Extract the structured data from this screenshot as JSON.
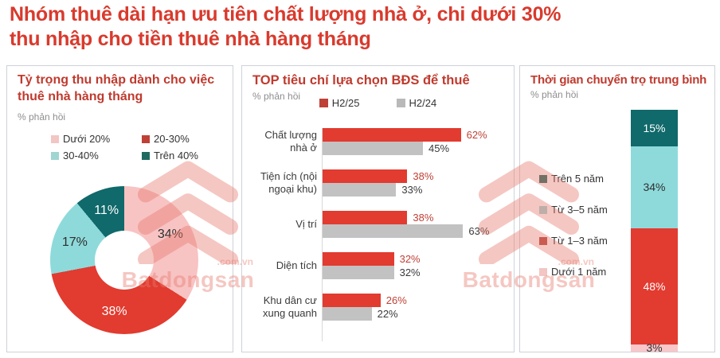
{
  "page": {
    "title": "Nhóm thuê dài hạn ưu tiên chất lượng nhà ở, chi dưới 30% thu nhập cho tiền thuê nhà hàng tháng",
    "title_lines": [
      "Nhóm thuê dài hạn ưu tiên chất lượng nhà ở, chi dưới 30%",
      "thu nhập cho tiền thuê nhà hàng tháng"
    ],
    "title_color": "#d93a2d"
  },
  "watermark": {
    "brand": "Batdongsan",
    "domain": ".com.vn",
    "color": "#f4c3bd"
  },
  "chart_data": [
    {
      "type": "pie",
      "donut": true,
      "title": "Tỷ trọng thu nhập dành cho việc thuê nhà hàng tháng",
      "title_lines": [
        "Tỷ trọng thu nhập dành cho việc",
        "thuê nhà hàng tháng"
      ],
      "subtitle": "% phản hồi",
      "labels": [
        "Dưới 20%",
        "20-30%",
        "30-40%",
        "Trên 40%"
      ],
      "values": [
        34,
        38,
        17,
        11
      ],
      "colors": [
        "#f8c3c3",
        "#e23b30",
        "#8edadb",
        "#10696a"
      ],
      "legend_colors": [
        "#f2c6c3",
        "#bf4136",
        "#9fd6d2",
        "#1f6a60"
      ],
      "label_text_colors": [
        "#2f2f2f",
        "#ffffff",
        "#2f2f2f",
        "#ffffff"
      ],
      "value_suffix": "%",
      "start_angle_deg": 0,
      "direction": "clockwise",
      "legend_position": "top"
    },
    {
      "type": "bar",
      "orientation": "horizontal",
      "grouped": true,
      "title": "TOP tiêu chí lựa chọn BĐS để thuê",
      "subtitle": "% phản hồi",
      "categories": [
        "Chất lượng nhà ở",
        "Tiện ích (nội ngoại khu)",
        "Vị trí",
        "Diện tích",
        "Khu dân cư xung quanh"
      ],
      "series": [
        {
          "name": "H2/25",
          "color": "#e23b30",
          "legend_color": "#bf4136",
          "value_text_color": "#bf4136",
          "values": [
            62,
            38,
            38,
            32,
            26
          ]
        },
        {
          "name": "H2/24",
          "color": "#c2c2c2",
          "legend_color": "#b9b9b9",
          "value_text_color": "#3a3a3a",
          "values": [
            45,
            33,
            63,
            32,
            22
          ]
        }
      ],
      "value_suffix": "%",
      "xlim": [
        0,
        70
      ],
      "legend_position": "top"
    },
    {
      "type": "bar",
      "stacked": true,
      "orientation": "vertical",
      "title": "Thời gian chuyển trọ trung bình",
      "subtitle": "% phản hồi",
      "segments_order": "top-to-bottom",
      "segments": [
        {
          "label": "Trên 5 năm",
          "value": 15,
          "color": "#10696a",
          "legend_color": "#1f6a60",
          "text_color": "#ffffff"
        },
        {
          "label": "Từ 3–5 năm",
          "value": 34,
          "color": "#8edadb",
          "legend_color": "#9fd6d2",
          "text_color": "#2f2f2f"
        },
        {
          "label": "Từ 1–3 năm",
          "value": 48,
          "color": "#e23b30",
          "legend_color": "#b5453b",
          "text_color": "#ffffff"
        },
        {
          "label": "Dưới 1 năm",
          "value": 3,
          "color": "#f9c6ca",
          "legend_color": "#f2c6c3",
          "text_color": "#333333"
        }
      ],
      "value_suffix": "%",
      "legend_position": "left"
    }
  ]
}
